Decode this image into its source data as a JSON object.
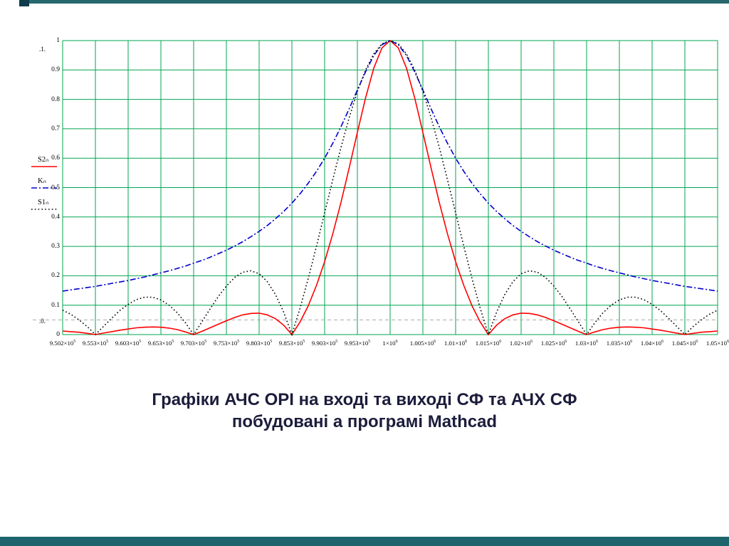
{
  "caption": {
    "line1": "Графіки АЧС ОРІ на вході та виході СФ та АЧХ СФ",
    "line2": "побудовані а програмі Mathcad"
  },
  "chart_data": {
    "type": "line",
    "title": "",
    "xlabel": "",
    "ylabel": "",
    "xlim": [
      950000,
      1050000
    ],
    "ylim": [
      0,
      1
    ],
    "grid": true,
    "grid_color": "#00A651",
    "hline_marker": 0.05,
    "axis_limit_top": ".1.",
    "axis_limit_bottom": ".0.",
    "x_start": 950000,
    "x_step": 1250,
    "x_tick_labels": [
      "9.502×10^5",
      "9.553×10^5",
      "9.603×10^5",
      "9.653×10^5",
      "9.703×10^5",
      "9.753×10^5",
      "9.803×10^5",
      "9.853×10^5",
      "9.903×10^5",
      "9.953×10^5",
      "1×10^6",
      "1.005×10^6",
      "1.01×10^6",
      "1.015×10^6",
      "1.02×10^6",
      "1.025×10^6",
      "1.03×10^6",
      "1.035×10^6",
      "1.04×10^6",
      "1.045×10^6",
      "1.05×10^6"
    ],
    "y_tick_labels": [
      "1",
      "0.9",
      "0.8",
      "0.7",
      "0.6",
      "0.5",
      "0.4",
      "0.3",
      "0.2",
      "0.1",
      "0"
    ],
    "legend": [
      {
        "name": "S2ₙ",
        "color": "#FF0000",
        "style": "solid"
      },
      {
        "name": "Kₙ",
        "color": "#0000CD",
        "style": "dashdot"
      },
      {
        "name": "S1ₙ",
        "color": "#000000",
        "style": "dotted"
      }
    ],
    "series": [
      {
        "name": "S2n",
        "values": [
          0.012,
          0.01,
          0.008,
          0.004,
          0,
          0.005,
          0.01,
          0.015,
          0.019,
          0.023,
          0.025,
          0.026,
          0.025,
          0.022,
          0.017,
          0.009,
          0,
          0.011,
          0.023,
          0.035,
          0.047,
          0.058,
          0.067,
          0.072,
          0.073,
          0.067,
          0.054,
          0.032,
          0,
          0.043,
          0.098,
          0.167,
          0.248,
          0.343,
          0.45,
          0.567,
          0.688,
          0.805,
          0.906,
          0.975,
          1.0,
          0.975,
          0.906,
          0.805,
          0.688,
          0.567,
          0.45,
          0.343,
          0.248,
          0.167,
          0.098,
          0.043,
          0,
          0.032,
          0.054,
          0.067,
          0.073,
          0.072,
          0.067,
          0.058,
          0.047,
          0.035,
          0.023,
          0.011,
          0,
          0.009,
          0.017,
          0.022,
          0.025,
          0.026,
          0.025,
          0.023,
          0.019,
          0.015,
          0.01,
          0.005,
          0,
          0.004,
          0.008,
          0.01,
          0.012
        ]
      },
      {
        "name": "Kn",
        "values": [
          0.148,
          0.152,
          0.156,
          0.16,
          0.164,
          0.169,
          0.174,
          0.179,
          0.184,
          0.19,
          0.196,
          0.203,
          0.21,
          0.217,
          0.225,
          0.233,
          0.243,
          0.252,
          0.263,
          0.275,
          0.287,
          0.301,
          0.316,
          0.333,
          0.351,
          0.371,
          0.394,
          0.419,
          0.447,
          0.479,
          0.515,
          0.555,
          0.6,
          0.651,
          0.707,
          0.768,
          0.832,
          0.894,
          0.949,
          0.986,
          1.0,
          0.986,
          0.949,
          0.894,
          0.832,
          0.768,
          0.707,
          0.651,
          0.6,
          0.555,
          0.515,
          0.479,
          0.447,
          0.419,
          0.394,
          0.371,
          0.351,
          0.333,
          0.316,
          0.301,
          0.287,
          0.275,
          0.263,
          0.252,
          0.243,
          0.233,
          0.225,
          0.217,
          0.21,
          0.203,
          0.196,
          0.19,
          0.184,
          0.179,
          0.174,
          0.169,
          0.164,
          0.16,
          0.156,
          0.152,
          0.148
        ]
      },
      {
        "name": "S1n",
        "values": [
          0.083,
          0.069,
          0.05,
          0.027,
          0,
          0.028,
          0.056,
          0.082,
          0.103,
          0.119,
          0.127,
          0.127,
          0.118,
          0.1,
          0.074,
          0.04,
          0,
          0.043,
          0.087,
          0.129,
          0.165,
          0.194,
          0.212,
          0.217,
          0.207,
          0.18,
          0.136,
          0.076,
          0,
          0.09,
          0.191,
          0.3,
          0.414,
          0.527,
          0.637,
          0.738,
          0.827,
          0.9,
          0.955,
          0.989,
          1.0,
          0.989,
          0.955,
          0.9,
          0.827,
          0.738,
          0.637,
          0.527,
          0.414,
          0.3,
          0.191,
          0.09,
          0,
          0.076,
          0.136,
          0.18,
          0.207,
          0.217,
          0.212,
          0.194,
          0.165,
          0.129,
          0.087,
          0.043,
          0,
          0.04,
          0.074,
          0.1,
          0.118,
          0.127,
          0.127,
          0.119,
          0.103,
          0.082,
          0.056,
          0.028,
          0,
          0.027,
          0.05,
          0.069,
          0.083
        ]
      }
    ]
  }
}
